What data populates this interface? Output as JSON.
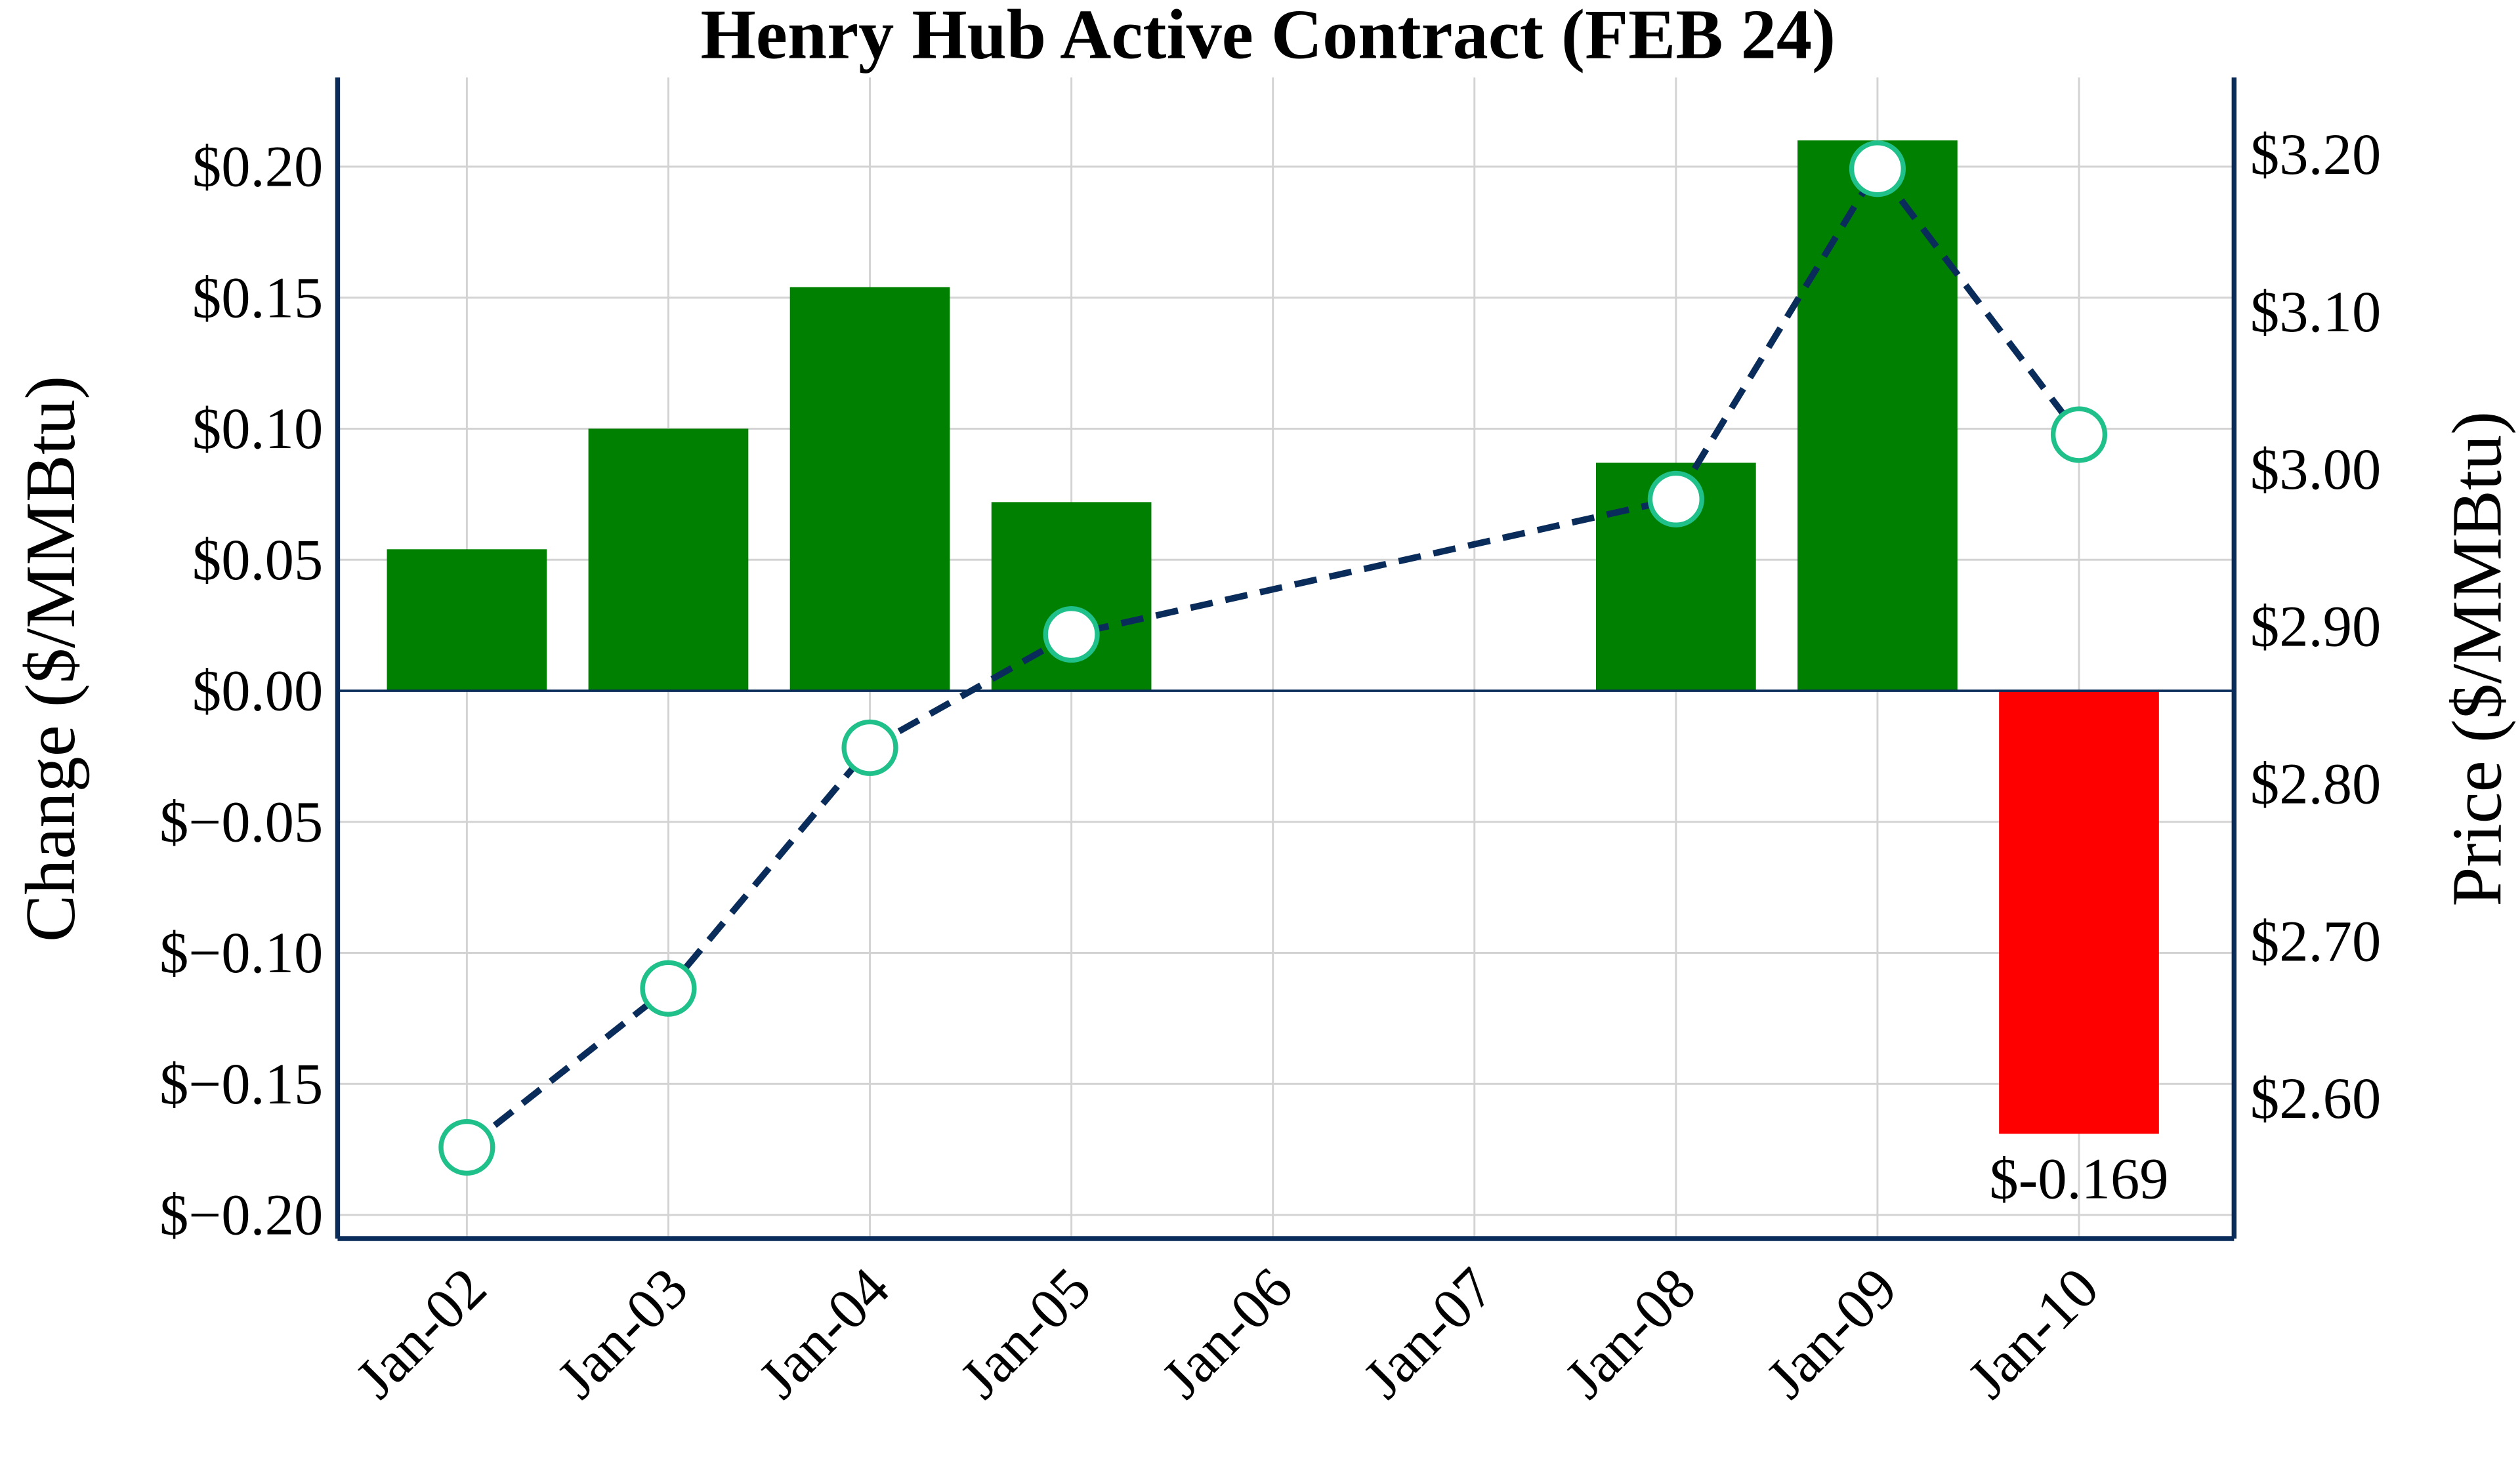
{
  "chart_data": {
    "type": "bar+line",
    "title": "Henry Hub Active Contract (FEB 24)",
    "categories": [
      "Jan-02",
      "Jan-03",
      "Jan-04",
      "Jan-05",
      "Jan-06",
      "Jan-07",
      "Jan-08",
      "Jan-09",
      "Jan-10"
    ],
    "series": [
      {
        "name": "Change",
        "type": "bar",
        "axis": "left",
        "values": [
          0.054,
          0.1,
          0.154,
          0.072,
          0,
          0,
          0.087,
          0.21,
          -0.169
        ]
      },
      {
        "name": "Price",
        "type": "line",
        "axis": "right",
        "values": [
          2.569,
          2.67,
          2.823,
          2.895,
          null,
          null,
          2.981,
          3.191,
          3.022
        ]
      }
    ],
    "ylabel": "Change ($/MMBtu)",
    "y2label": "Price ($/MMBtu)",
    "ylim": [
      -0.209,
      0.234
    ],
    "y2lim": [
      2.511,
      3.249
    ],
    "yticks": [
      -0.2,
      -0.15,
      -0.1,
      -0.05,
      0.0,
      0.05,
      0.1,
      0.15,
      0.2
    ],
    "ytick_labels": [
      "$−0.20",
      "$−0.15",
      "$−0.10",
      "$−0.05",
      "$0.00",
      "$0.05",
      "$0.10",
      "$0.15",
      "$0.20"
    ],
    "y2ticks": [
      2.6,
      2.7,
      2.8,
      2.9,
      3.0,
      3.1,
      3.2
    ],
    "y2tick_labels": [
      "$2.60",
      "$2.70",
      "$2.80",
      "$2.90",
      "$3.00",
      "$3.10",
      "$3.20"
    ],
    "annotations": [
      {
        "category": "Jan-10",
        "text": "$-0.169"
      }
    ],
    "grid": true,
    "colors": {
      "positive": "#008000",
      "negative": "#ff0000",
      "line": "#0a2c5a",
      "marker_edge": "#1fc08a",
      "axis": "#0a2c5a",
      "grid": "#d3d3d3"
    }
  }
}
